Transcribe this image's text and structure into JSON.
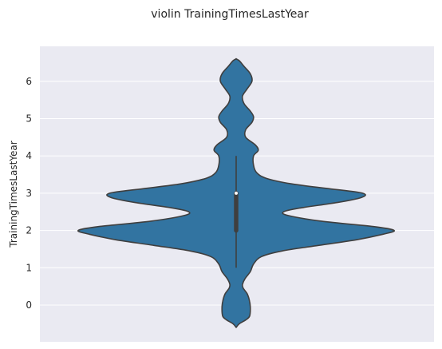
{
  "chart_data": {
    "type": "violin",
    "title": "violin TrainingTimesLastYear",
    "xlabel": "",
    "ylabel": "TrainingTimesLastYear",
    "ylim": [
      -0.6,
      6.9
    ],
    "yticks": [
      0,
      1,
      2,
      3,
      4,
      5,
      6
    ],
    "grid": true,
    "color": "#3274a1",
    "edge_color": "#3f3f3f",
    "background_color": "#eaeaf2",
    "violin": {
      "extent": [
        -0.6,
        6.6
      ],
      "density_profile": [
        [
          -0.6,
          0.0
        ],
        [
          -0.5,
          0.02
        ],
        [
          -0.4,
          0.06
        ],
        [
          -0.3,
          0.085
        ],
        [
          -0.1,
          0.09
        ],
        [
          0.1,
          0.085
        ],
        [
          0.3,
          0.07
        ],
        [
          0.45,
          0.045
        ],
        [
          0.55,
          0.04
        ],
        [
          0.7,
          0.055
        ],
        [
          0.9,
          0.09
        ],
        [
          1.1,
          0.11
        ],
        [
          1.3,
          0.16
        ],
        [
          1.45,
          0.29
        ],
        [
          1.6,
          0.52
        ],
        [
          1.75,
          0.76
        ],
        [
          1.9,
          0.93
        ],
        [
          2.0,
          1.0
        ],
        [
          2.1,
          0.88
        ],
        [
          2.25,
          0.54
        ],
        [
          2.4,
          0.33
        ],
        [
          2.5,
          0.3
        ],
        [
          2.6,
          0.4
        ],
        [
          2.75,
          0.64
        ],
        [
          2.88,
          0.79
        ],
        [
          3.0,
          0.8
        ],
        [
          3.12,
          0.59
        ],
        [
          3.25,
          0.35
        ],
        [
          3.4,
          0.19
        ],
        [
          3.55,
          0.13
        ],
        [
          3.75,
          0.11
        ],
        [
          4.0,
          0.11
        ],
        [
          4.15,
          0.14
        ],
        [
          4.3,
          0.12
        ],
        [
          4.5,
          0.06
        ],
        [
          4.7,
          0.06
        ],
        [
          4.9,
          0.1
        ],
        [
          5.05,
          0.11
        ],
        [
          5.2,
          0.09
        ],
        [
          5.4,
          0.05
        ],
        [
          5.6,
          0.04
        ],
        [
          5.8,
          0.07
        ],
        [
          6.0,
          0.1
        ],
        [
          6.2,
          0.09
        ],
        [
          6.4,
          0.05
        ],
        [
          6.55,
          0.02
        ],
        [
          6.6,
          0.0
        ]
      ],
      "box": {
        "q1": 2,
        "median": 3,
        "q3": 3,
        "whisker_low": 1,
        "whisker_high": 4
      }
    }
  }
}
